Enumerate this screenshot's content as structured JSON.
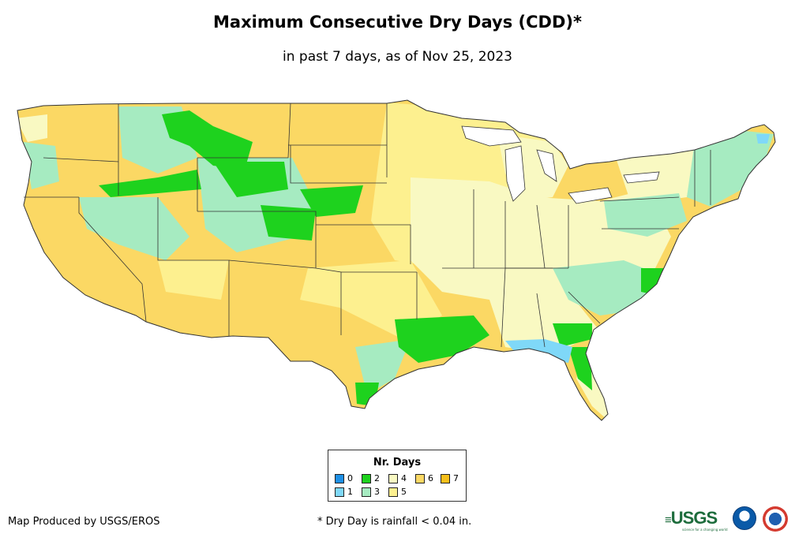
{
  "header": {
    "title": "Maximum Consecutive Dry Days (CDD)*",
    "subtitle": "in past 7 days, as of Nov 25, 2023"
  },
  "legend": {
    "title": "Nr. Days",
    "items": [
      {
        "label": "0",
        "color": "#1e90e6"
      },
      {
        "label": "1",
        "color": "#7fd8f8"
      },
      {
        "label": "2",
        "color": "#1ed21e"
      },
      {
        "label": "3",
        "color": "#a6ebc1"
      },
      {
        "label": "4",
        "color": "#f9f9c2"
      },
      {
        "label": "5",
        "color": "#fdf08f"
      },
      {
        "label": "6",
        "color": "#fbd864"
      },
      {
        "label": "7",
        "color": "#f6bf1a"
      }
    ]
  },
  "footer": {
    "credit": "Map Produced by USGS/EROS",
    "note": "* Dry Day is rainfall < 0.04 in."
  },
  "logos": {
    "usgs": "USGS",
    "usgs_tagline": "science for a changing world",
    "noaa": "noaa",
    "nws": "NWS"
  },
  "map_regions": [
    {
      "name": "west-coast-ca-nv-az",
      "days": 6
    },
    {
      "name": "northern-plains-mt-nd-sd",
      "days": 6
    },
    {
      "name": "texas-new-mexico",
      "days": 6
    },
    {
      "name": "midwest-great-lakes",
      "days": 4
    },
    {
      "name": "northeast",
      "days": 3
    },
    {
      "name": "rockies-wy-co",
      "days": 2
    },
    {
      "name": "gulf-coast-la-ms",
      "days": 2
    },
    {
      "name": "carolinas-coast",
      "days": 2
    },
    {
      "name": "north-florida-big-bend",
      "days": 1
    }
  ]
}
